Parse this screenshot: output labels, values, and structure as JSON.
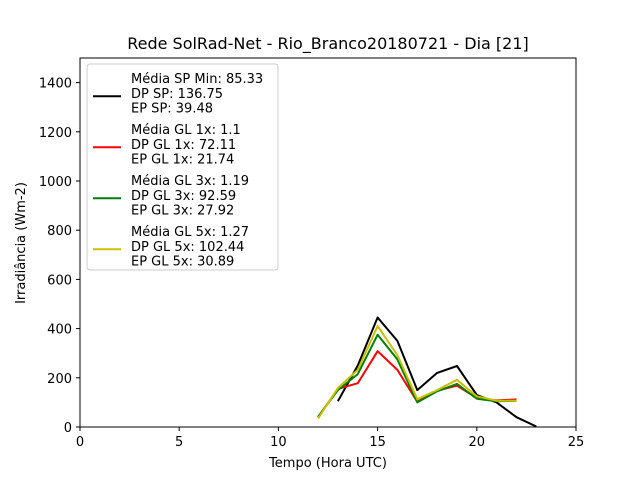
{
  "chart_data": {
    "type": "line",
    "title": "Rede SolRad-Net - Rio_Branco20180721 - Dia [21]",
    "xlabel": "Tempo (Hora UTC)",
    "ylabel": "Irradiância (Wm-2)",
    "xlim": [
      0,
      25
    ],
    "ylim": [
      0,
      1500
    ],
    "xticks": [
      0,
      5,
      10,
      15,
      20,
      25
    ],
    "yticks": [
      0,
      200,
      400,
      600,
      800,
      1000,
      1200,
      1400
    ],
    "grid": false,
    "legend_position": "top-left",
    "series": [
      {
        "color": "#000000",
        "legend_lines": [
          "Média SP Min: 85.33",
          "DP SP: 136.75",
          "EP SP: 39.48"
        ],
        "x": [
          13,
          14,
          15,
          16,
          17,
          18,
          19,
          20,
          21,
          22,
          23
        ],
        "y": [
          105,
          250,
          445,
          350,
          150,
          220,
          248,
          130,
          100,
          40,
          2
        ]
      },
      {
        "color": "#ff0000",
        "legend_lines": [
          "Média GL 1x: 1.1",
          "DP GL 1x: 72.11",
          "EP GL 1x: 21.74"
        ],
        "x": [
          12,
          13,
          14,
          15,
          16,
          17,
          18,
          19,
          20,
          21,
          22
        ],
        "y": [
          40,
          155,
          178,
          308,
          232,
          103,
          148,
          168,
          118,
          108,
          112
        ]
      },
      {
        "color": "#008000",
        "legend_lines": [
          "Média GL 3x: 1.19",
          "DP GL 3x: 92.59",
          "EP GL 3x: 27.92"
        ],
        "x": [
          12,
          13,
          14,
          15,
          16,
          17,
          18,
          19,
          20,
          21,
          22
        ],
        "y": [
          42,
          150,
          215,
          375,
          275,
          100,
          145,
          175,
          115,
          105,
          106
        ]
      },
      {
        "color": "#c8c000",
        "legend_lines": [
          "Média GL 5x: 1.27",
          "DP GL 5x: 102.44",
          "EP GL 5x: 30.89"
        ],
        "x": [
          12,
          13,
          14,
          15,
          16,
          17,
          18,
          19,
          20,
          21,
          22
        ],
        "y": [
          35,
          158,
          232,
          410,
          292,
          113,
          150,
          192,
          125,
          107,
          107
        ]
      }
    ]
  }
}
